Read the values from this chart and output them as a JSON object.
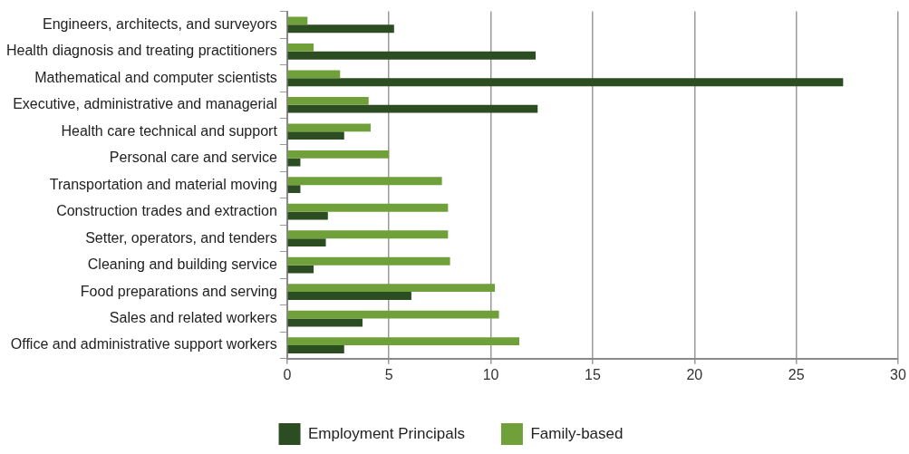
{
  "chart_data": {
    "type": "bar",
    "orientation": "horizontal",
    "categories": [
      "Engineers, architects, and surveyors",
      "Health diagnosis and treating practitioners",
      "Mathematical and computer scientists",
      "Executive, administrative and managerial",
      "Health care technical and support",
      "Personal care and service",
      "Transportation and material moving",
      "Construction trades and extraction",
      "Setter, operators, and tenders",
      "Cleaning and building service",
      "Food preparations and serving",
      "Sales and related workers",
      "Office and administrative support workers"
    ],
    "series": [
      {
        "name": "Employment Principals",
        "color": "#2b4d21",
        "values": [
          5.25,
          12.2,
          27.3,
          12.3,
          2.8,
          0.65,
          0.65,
          2.0,
          1.9,
          1.3,
          6.1,
          3.7,
          2.8
        ]
      },
      {
        "name": "Family-based",
        "color": "#70a03a",
        "values": [
          1.0,
          1.3,
          2.6,
          4.0,
          4.1,
          5.0,
          7.6,
          7.9,
          7.9,
          8.0,
          10.2,
          10.4,
          11.4
        ]
      }
    ],
    "xlim": [
      0,
      30
    ],
    "xticks": [
      0,
      5,
      10,
      15,
      20,
      25,
      30
    ],
    "grid": "x",
    "legend": "bottom"
  }
}
